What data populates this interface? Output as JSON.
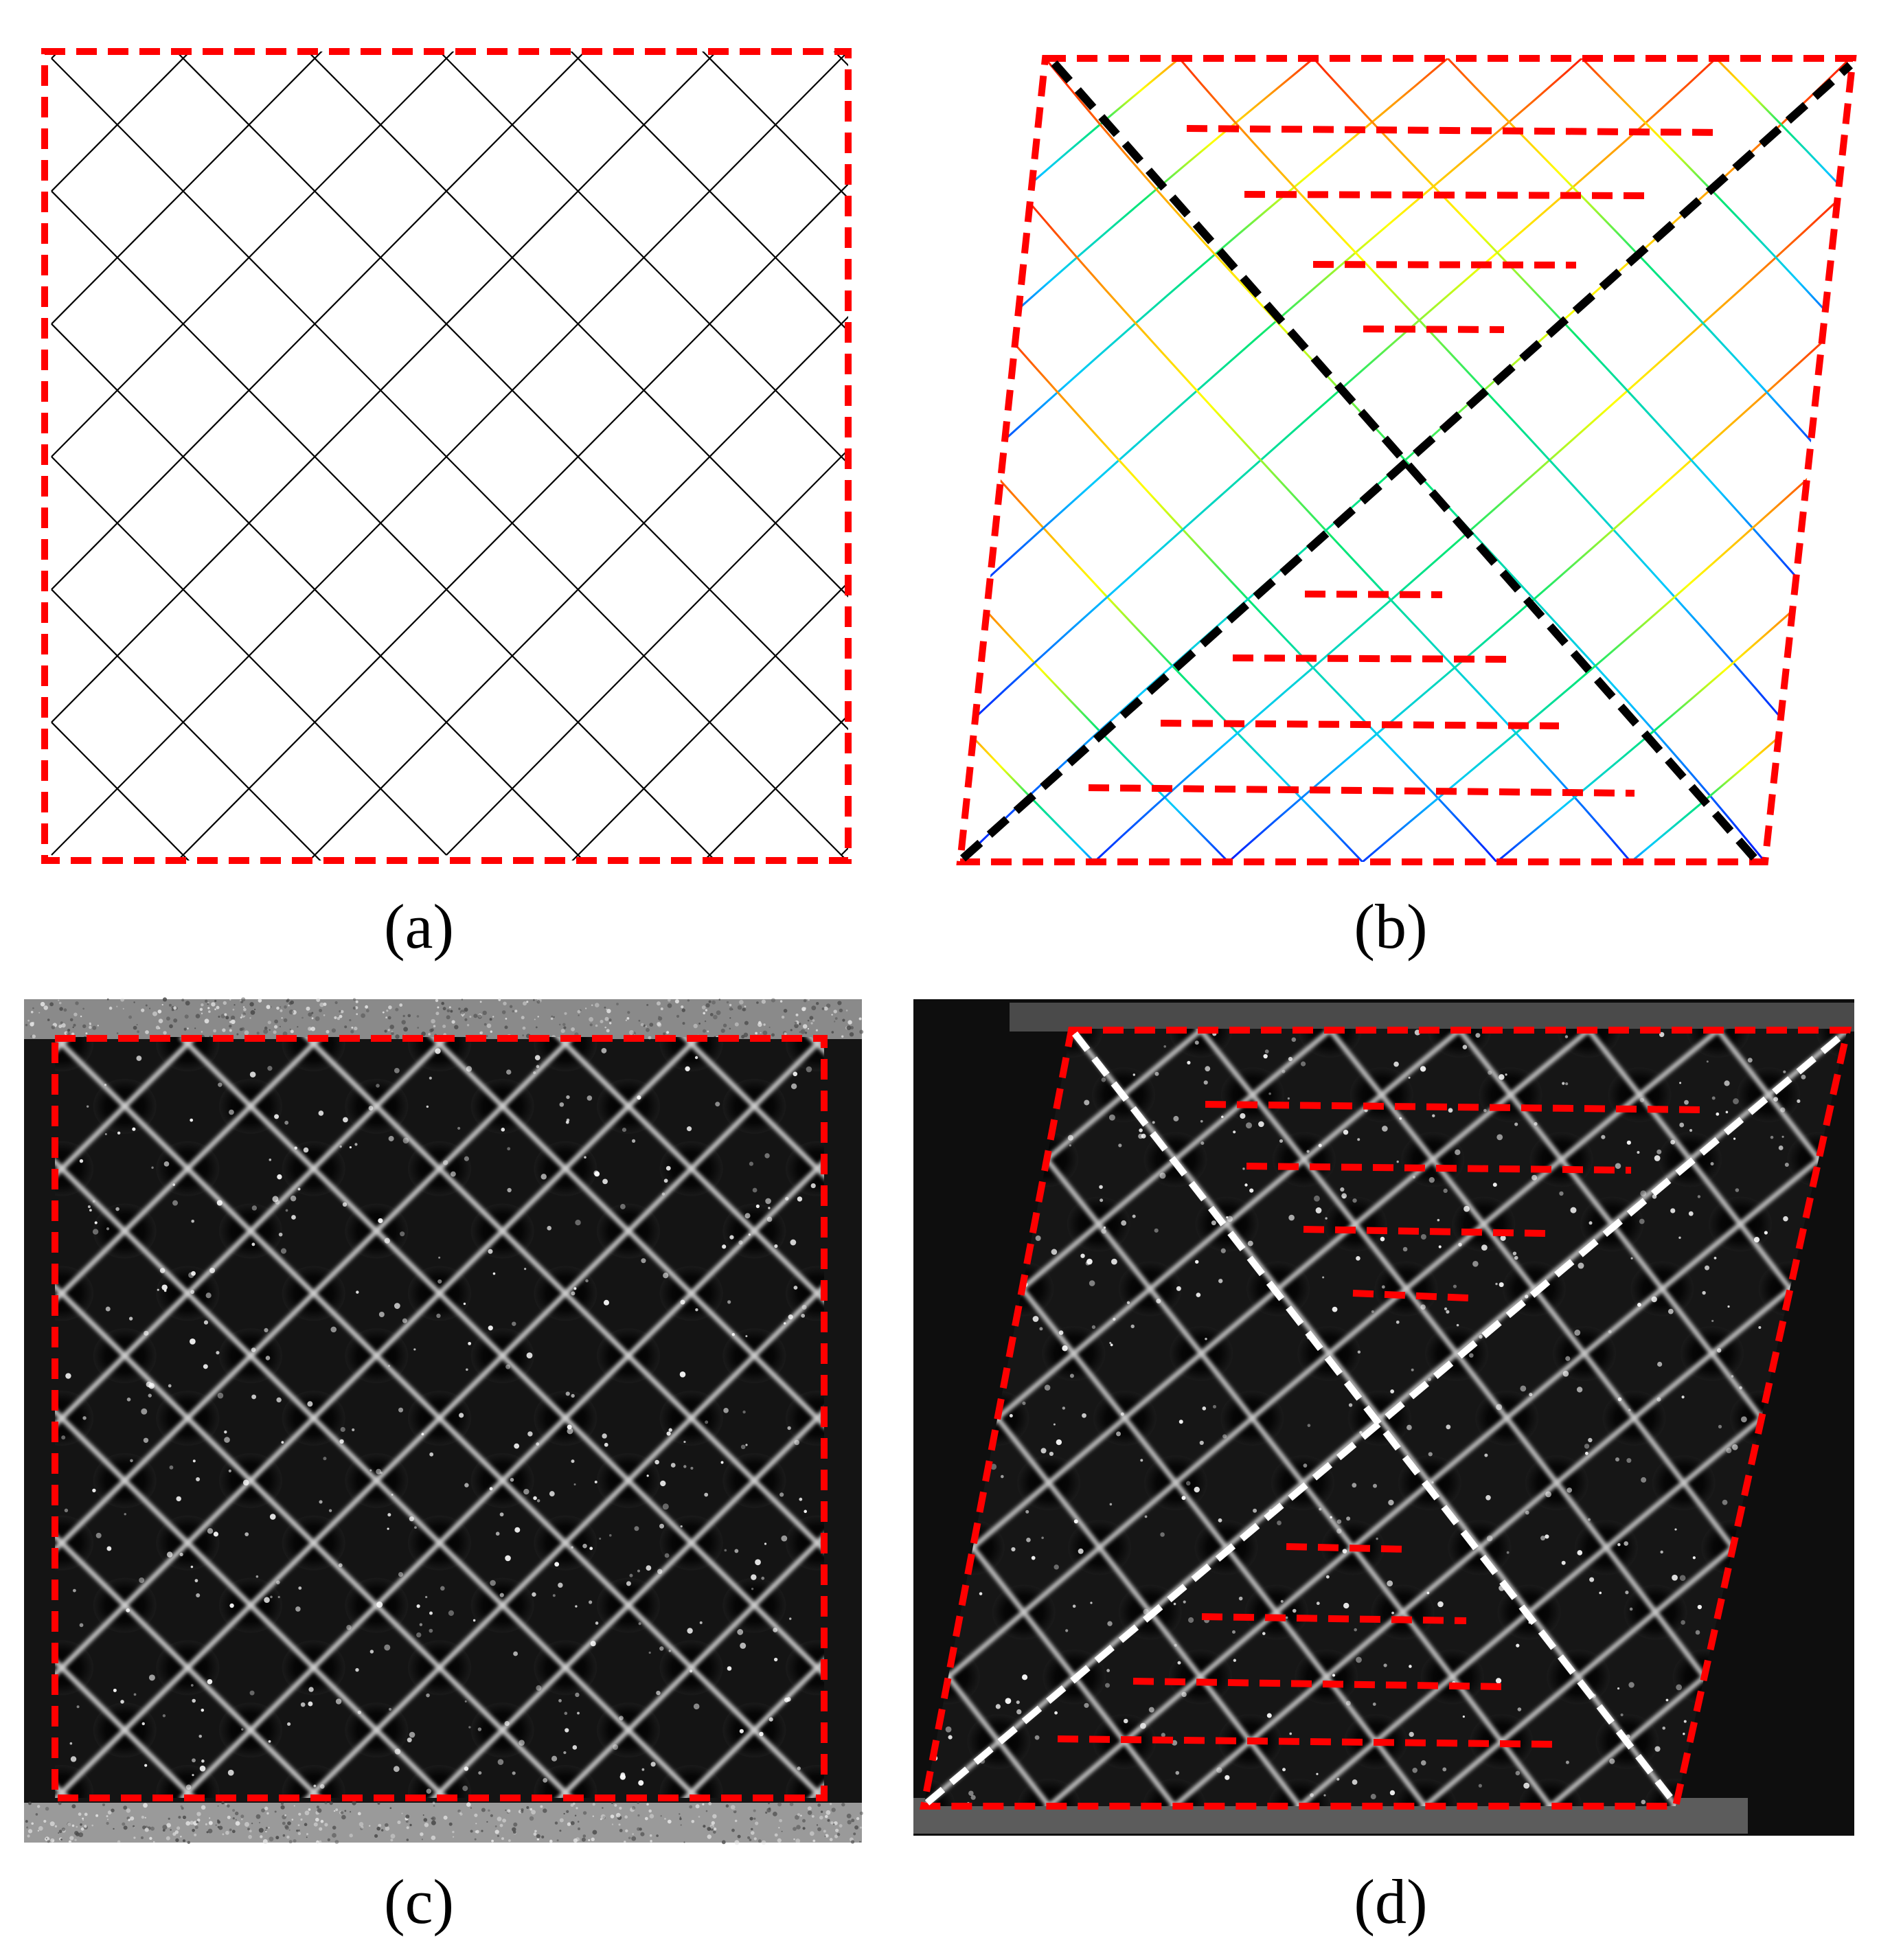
{
  "panels": [
    {
      "id": "a",
      "label": "(a)"
    },
    {
      "id": "b",
      "label": "(b)"
    },
    {
      "id": "c",
      "label": "(c)"
    },
    {
      "id": "d",
      "label": "(d)"
    }
  ],
  "colors": {
    "boundary": "#ff0000",
    "undeformed_lattice": "#000000",
    "diagonal_b": "#000000",
    "diagonal_d": "#ffffff",
    "photo_background": "#111111",
    "lattice_glow": "#d8d8d8",
    "displacement_scale": [
      "#0000ff",
      "#00c8ff",
      "#00e676",
      "#ffff00",
      "#ff9900",
      "#ff0000"
    ]
  }
}
